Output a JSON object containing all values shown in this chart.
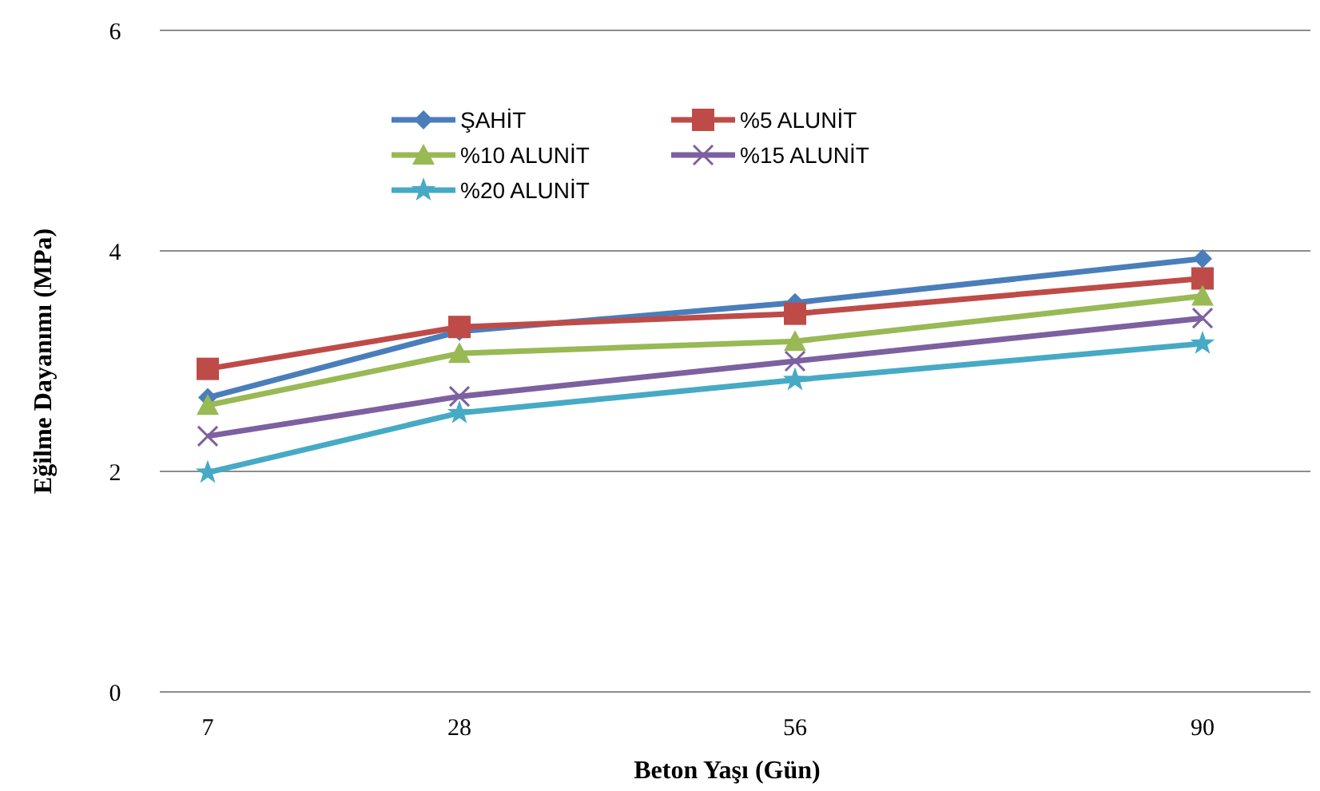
{
  "chart_data": {
    "type": "line",
    "xlabel": "Beton Yaşı (Gün)",
    "ylabel": "Eğilme Dayanımı (MPa)",
    "x": [
      7,
      28,
      56,
      90
    ],
    "xlim": [
      3,
      99
    ],
    "xticks": [
      7,
      28,
      56,
      90
    ],
    "ylim": [
      0,
      6
    ],
    "yticks": [
      0,
      2,
      4,
      6
    ],
    "grid": "y",
    "legend": "top",
    "line_style": "solid",
    "series": [
      {
        "name": "ŞAHİT",
        "color": "#4a7ebb",
        "marker": "diamond",
        "values": [
          2.67,
          3.27,
          3.53,
          3.93
        ]
      },
      {
        "name": "%5 ALUNİT",
        "color": "#be4b48",
        "marker": "square",
        "values": [
          2.93,
          3.31,
          3.43,
          3.75
        ]
      },
      {
        "name": "%10 ALUNİT",
        "color": "#98b954",
        "marker": "triangle",
        "values": [
          2.6,
          3.07,
          3.18,
          3.59
        ]
      },
      {
        "name": "%15 ALUNİT",
        "color": "#7d60a0",
        "marker": "cross",
        "values": [
          2.32,
          2.68,
          3.0,
          3.39
        ]
      },
      {
        "name": "%20 ALUNİT",
        "color": "#46aac5",
        "marker": "star",
        "values": [
          1.99,
          2.53,
          2.83,
          3.16
        ]
      }
    ]
  }
}
